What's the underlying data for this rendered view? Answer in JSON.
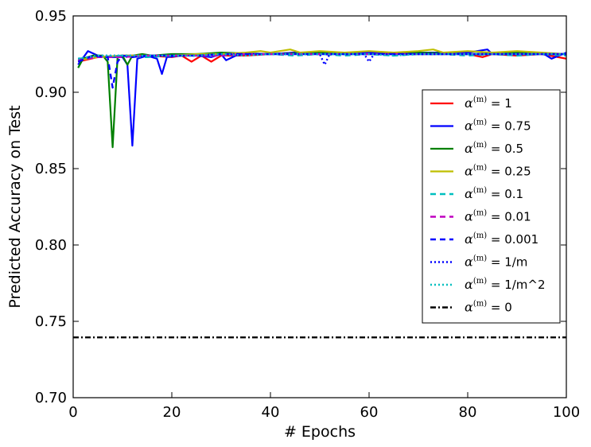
{
  "chart_data": {
    "type": "line",
    "title": "",
    "xlabel": "# Epochs",
    "ylabel": "Predicted Accuracy on Test",
    "xlim": [
      0,
      100
    ],
    "ylim": [
      0.7,
      0.95
    ],
    "xticks": [
      0,
      20,
      40,
      60,
      80,
      100
    ],
    "yticks": [
      0.7,
      0.75,
      0.8,
      0.85,
      0.9,
      0.95
    ],
    "xtick_labels": [
      "0",
      "20",
      "40",
      "60",
      "80",
      "100"
    ],
    "ytick_labels": [
      "0.70",
      "0.75",
      "0.80",
      "0.85",
      "0.90",
      "0.95"
    ],
    "grid": false,
    "legend_position": "right",
    "series": [
      {
        "name": "= 1",
        "color": "#ff0000",
        "style": "solid",
        "x": [
          1,
          5,
          10,
          15,
          20,
          22,
          24,
          26,
          28,
          30,
          35,
          40,
          45,
          50,
          55,
          60,
          65,
          70,
          75,
          80,
          83,
          85,
          90,
          95,
          100
        ],
        "y": [
          0.92,
          0.923,
          0.924,
          0.924,
          0.923,
          0.924,
          0.92,
          0.924,
          0.92,
          0.924,
          0.924,
          0.925,
          0.926,
          0.925,
          0.926,
          0.925,
          0.926,
          0.925,
          0.926,
          0.925,
          0.923,
          0.925,
          0.924,
          0.925,
          0.922
        ]
      },
      {
        "name": "= 0.75",
        "color": "#0000ff",
        "style": "solid",
        "x": [
          1,
          3,
          5,
          7,
          10,
          11,
          12,
          13,
          15,
          17,
          18,
          19,
          22,
          25,
          28,
          30,
          31,
          33,
          35,
          40,
          45,
          50,
          55,
          60,
          65,
          70,
          75,
          80,
          84,
          85,
          90,
          95,
          97,
          100
        ],
        "y": [
          0.918,
          0.927,
          0.924,
          0.923,
          0.923,
          0.918,
          0.865,
          0.922,
          0.924,
          0.922,
          0.912,
          0.923,
          0.924,
          0.924,
          0.923,
          0.925,
          0.921,
          0.924,
          0.925,
          0.925,
          0.926,
          0.926,
          0.925,
          0.926,
          0.926,
          0.926,
          0.926,
          0.926,
          0.928,
          0.925,
          0.926,
          0.926,
          0.922,
          0.926
        ]
      },
      {
        "name": "= 0.5",
        "color": "#008000",
        "style": "solid",
        "x": [
          1,
          2,
          4,
          6,
          7,
          8,
          9,
          10,
          11,
          12,
          14,
          16,
          20,
          25,
          30,
          40,
          50,
          60,
          70,
          80,
          90,
          100
        ],
        "y": [
          0.916,
          0.922,
          0.924,
          0.924,
          0.92,
          0.864,
          0.923,
          0.924,
          0.918,
          0.924,
          0.925,
          0.924,
          0.925,
          0.925,
          0.926,
          0.925,
          0.926,
          0.925,
          0.926,
          0.925,
          0.926,
          0.925
        ]
      },
      {
        "name": "= 0.25",
        "color": "#bfbf00",
        "style": "solid",
        "x": [
          1,
          5,
          10,
          15,
          20,
          25,
          30,
          35,
          38,
          40,
          44,
          46,
          50,
          55,
          60,
          65,
          70,
          73,
          75,
          80,
          85,
          90,
          95,
          100
        ],
        "y": [
          0.921,
          0.923,
          0.924,
          0.924,
          0.924,
          0.925,
          0.925,
          0.926,
          0.927,
          0.926,
          0.928,
          0.926,
          0.927,
          0.926,
          0.927,
          0.926,
          0.927,
          0.928,
          0.926,
          0.927,
          0.926,
          0.927,
          0.926,
          0.925
        ]
      },
      {
        "name": "= 0.1",
        "color": "#00bfbf",
        "style": "dashed",
        "x": [
          1,
          5,
          10,
          15,
          20,
          25,
          30,
          35,
          40,
          45,
          50,
          55,
          60,
          65,
          70,
          75,
          80,
          85,
          90,
          95,
          100
        ],
        "y": [
          0.922,
          0.923,
          0.924,
          0.923,
          0.924,
          0.924,
          0.924,
          0.925,
          0.925,
          0.924,
          0.925,
          0.924,
          0.925,
          0.924,
          0.925,
          0.925,
          0.924,
          0.925,
          0.924,
          0.925,
          0.924
        ]
      },
      {
        "name": "= 0.01",
        "color": "#bf00bf",
        "style": "dashed",
        "x": [
          1,
          5,
          10,
          15,
          20,
          25,
          30,
          35,
          40,
          45,
          50,
          55,
          60,
          65,
          70,
          75,
          80,
          85,
          90,
          95,
          100
        ],
        "y": [
          0.921,
          0.923,
          0.923,
          0.924,
          0.924,
          0.924,
          0.924,
          0.925,
          0.925,
          0.925,
          0.925,
          0.925,
          0.925,
          0.925,
          0.925,
          0.925,
          0.925,
          0.925,
          0.925,
          0.925,
          0.925
        ]
      },
      {
        "name": "= 0.001",
        "color": "#0000ff",
        "style": "dashed",
        "x": [
          1,
          4,
          7,
          8,
          9,
          10,
          12,
          15,
          20,
          25,
          30,
          35,
          40,
          45,
          50,
          55,
          60,
          65,
          70,
          75,
          80,
          85,
          90,
          95,
          100
        ],
        "y": [
          0.92,
          0.924,
          0.923,
          0.903,
          0.92,
          0.924,
          0.923,
          0.924,
          0.924,
          0.924,
          0.925,
          0.925,
          0.925,
          0.925,
          0.925,
          0.925,
          0.925,
          0.925,
          0.925,
          0.925,
          0.925,
          0.925,
          0.925,
          0.925,
          0.925
        ]
      },
      {
        "name": "= 1/m",
        "color": "#0000ff",
        "style": "dotted",
        "x": [
          1,
          5,
          10,
          15,
          20,
          25,
          30,
          35,
          40,
          45,
          50,
          51,
          52,
          55,
          59,
          60,
          61,
          65,
          70,
          75,
          80,
          85,
          90,
          95,
          100
        ],
        "y": [
          0.922,
          0.924,
          0.924,
          0.924,
          0.924,
          0.924,
          0.925,
          0.925,
          0.925,
          0.925,
          0.925,
          0.918,
          0.925,
          0.925,
          0.925,
          0.92,
          0.925,
          0.925,
          0.925,
          0.925,
          0.925,
          0.925,
          0.925,
          0.925,
          0.925
        ]
      },
      {
        "name": "= 1/m^2",
        "color": "#00bfbf",
        "style": "dotted",
        "x": [
          1,
          5,
          10,
          15,
          20,
          25,
          30,
          35,
          40,
          45,
          50,
          55,
          60,
          65,
          70,
          75,
          80,
          85,
          90,
          95,
          100
        ],
        "y": [
          0.922,
          0.924,
          0.924,
          0.924,
          0.924,
          0.924,
          0.925,
          0.924,
          0.925,
          0.925,
          0.925,
          0.925,
          0.925,
          0.924,
          0.925,
          0.925,
          0.925,
          0.925,
          0.925,
          0.925,
          0.925
        ]
      },
      {
        "name": "= 0",
        "color": "#000000",
        "style": "dashdot",
        "x": [
          0,
          100
        ],
        "y": [
          0.7395,
          0.7395
        ]
      }
    ]
  }
}
